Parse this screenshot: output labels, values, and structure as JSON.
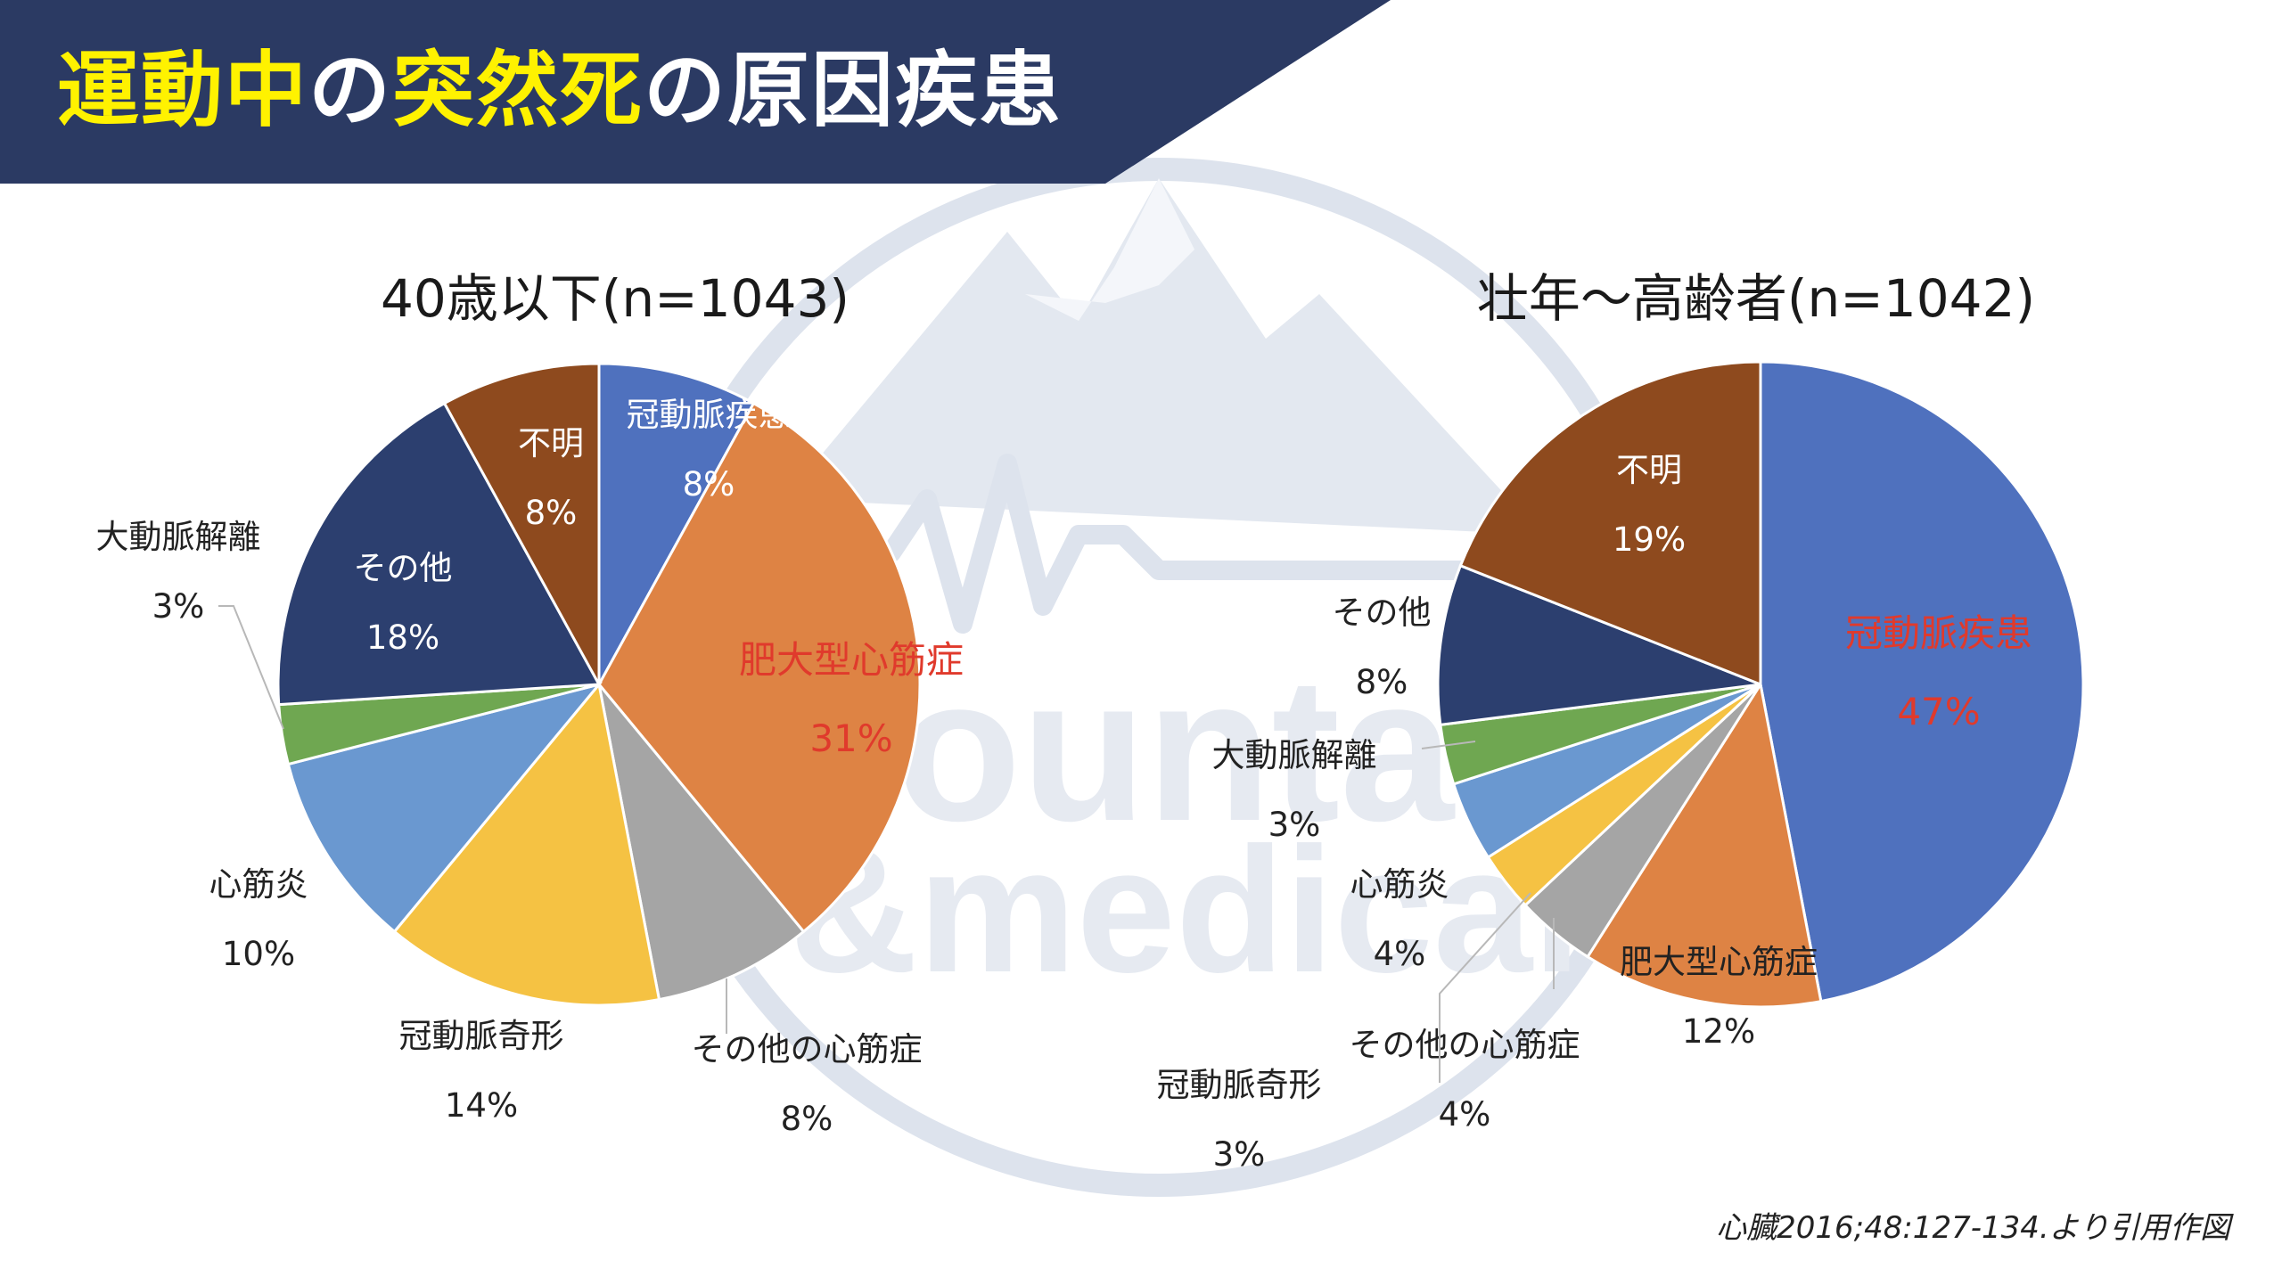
{
  "slide_title": {
    "segments": [
      {
        "text": "運動中",
        "color": "#FFF200"
      },
      {
        "text": "の",
        "color": "#FFFFFF"
      },
      {
        "text": "突然死",
        "color": "#FFF200"
      },
      {
        "text": "の原因疾患",
        "color": "#FFFFFF"
      }
    ]
  },
  "colors": {
    "banner": "#2B3A63",
    "highlight_label": "#E03A2C",
    "normal_label": "#222222",
    "inside_label": "#FFFFFF",
    "watermark": "#DDE3ED"
  },
  "watermark": {
    "line1": "ountai",
    "line2": "&medical"
  },
  "citation": "心臓2016;48:127-134.より引用作図",
  "chart_data": [
    {
      "type": "pie",
      "title": "40歳以下(n=1043)",
      "start": "12 o'clock",
      "direction": "clockwise",
      "slices": [
        {
          "label": "冠動脈疾患",
          "value": 8,
          "pct": "8%",
          "color": "#4F71BE"
        },
        {
          "label": "肥大型心筋症",
          "value": 31,
          "pct": "31%",
          "color": "#DE8344",
          "highlight": true
        },
        {
          "label": "その他の心筋症",
          "value": 8,
          "pct": "8%",
          "color": "#A5A5A5"
        },
        {
          "label": "冠動脈奇形",
          "value": 14,
          "pct": "14%",
          "color": "#F5C243"
        },
        {
          "label": "心筋炎",
          "value": 10,
          "pct": "10%",
          "color": "#6A98D0"
        },
        {
          "label": "大動脈解離",
          "value": 3,
          "pct": "3%",
          "color": "#6FA751"
        },
        {
          "label": "その他",
          "value": 18,
          "pct": "18%",
          "color": "#2C3F6F"
        },
        {
          "label": "不明",
          "value": 8,
          "pct": "8%",
          "color": "#8E4A1E"
        }
      ]
    },
    {
      "type": "pie",
      "title": "壮年～高齢者(n=1042)",
      "start": "12 o'clock",
      "direction": "clockwise",
      "slices": [
        {
          "label": "冠動脈疾患",
          "value": 47,
          "pct": "47%",
          "color": "#4F71BE",
          "highlight": true
        },
        {
          "label": "肥大型心筋症",
          "value": 12,
          "pct": "12%",
          "color": "#DE8344"
        },
        {
          "label": "その他の心筋症",
          "value": 4,
          "pct": "4%",
          "color": "#A5A5A5"
        },
        {
          "label": "冠動脈奇形",
          "value": 3,
          "pct": "3%",
          "color": "#F5C243"
        },
        {
          "label": "心筋炎",
          "value": 4,
          "pct": "4%",
          "color": "#6A98D0"
        },
        {
          "label": "大動脈解離",
          "value": 3,
          "pct": "3%",
          "color": "#6FA751"
        },
        {
          "label": "その他",
          "value": 8,
          "pct": "8%",
          "color": "#2C3F6F"
        },
        {
          "label": "不明",
          "value": 19,
          "pct": "19%",
          "color": "#8E4A1E"
        }
      ]
    }
  ]
}
